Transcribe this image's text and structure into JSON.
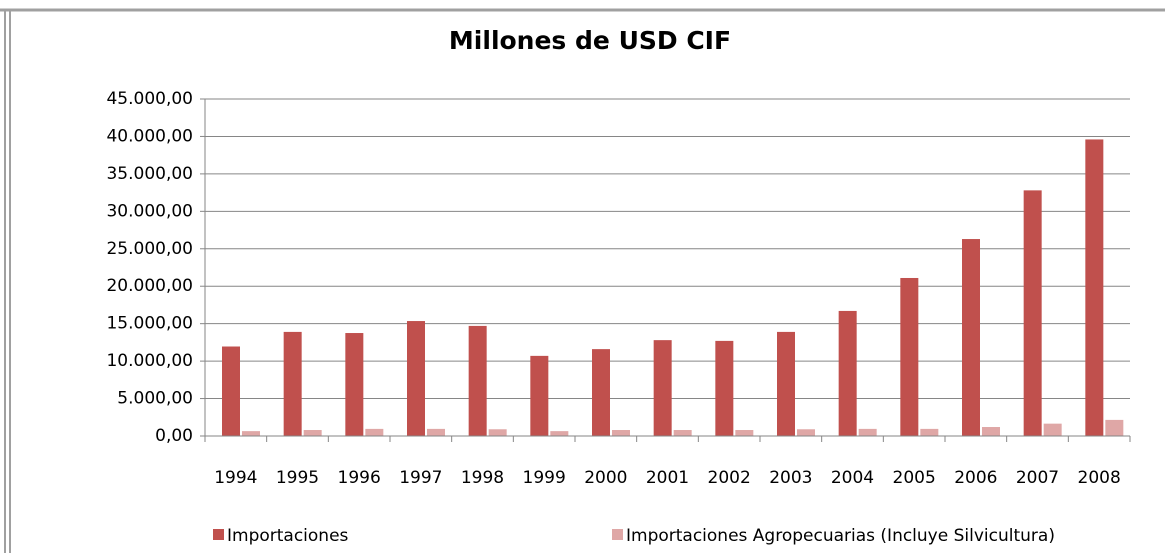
{
  "chart_data": {
    "type": "bar",
    "title": "Millones de USD CIF",
    "categories": [
      "1994",
      "1995",
      "1996",
      "1997",
      "1998",
      "1999",
      "2000",
      "2001",
      "2002",
      "2003",
      "2004",
      "2005",
      "2006",
      "2007",
      "2008"
    ],
    "series": [
      {
        "name": "Importaciones",
        "color": "#c0504d",
        "values": [
          11950,
          13900,
          13750,
          15350,
          14700,
          10700,
          11600,
          12800,
          12700,
          13900,
          16700,
          21100,
          26300,
          32800,
          39600
        ]
      },
      {
        "name": "Importaciones Agropecuarias (Incluye Silvicultura)",
        "color": "#dfa7a6",
        "values": [
          650,
          800,
          950,
          950,
          900,
          650,
          800,
          800,
          800,
          900,
          950,
          950,
          1200,
          1650,
          2150
        ]
      }
    ],
    "ylim": [
      0,
      45000
    ],
    "yticks": [
      {
        "value": 0,
        "label": "0,00"
      },
      {
        "value": 5000,
        "label": "5.000,00"
      },
      {
        "value": 10000,
        "label": "10.000,00"
      },
      {
        "value": 15000,
        "label": "15.000,00"
      },
      {
        "value": 20000,
        "label": "20.000,00"
      },
      {
        "value": 25000,
        "label": "25.000,00"
      },
      {
        "value": 30000,
        "label": "30.000,00"
      },
      {
        "value": 35000,
        "label": "35.000,00"
      },
      {
        "value": 40000,
        "label": "40.000,00"
      },
      {
        "value": 45000,
        "label": "45.000,00"
      }
    ],
    "grid": true,
    "legend": "bottom"
  }
}
